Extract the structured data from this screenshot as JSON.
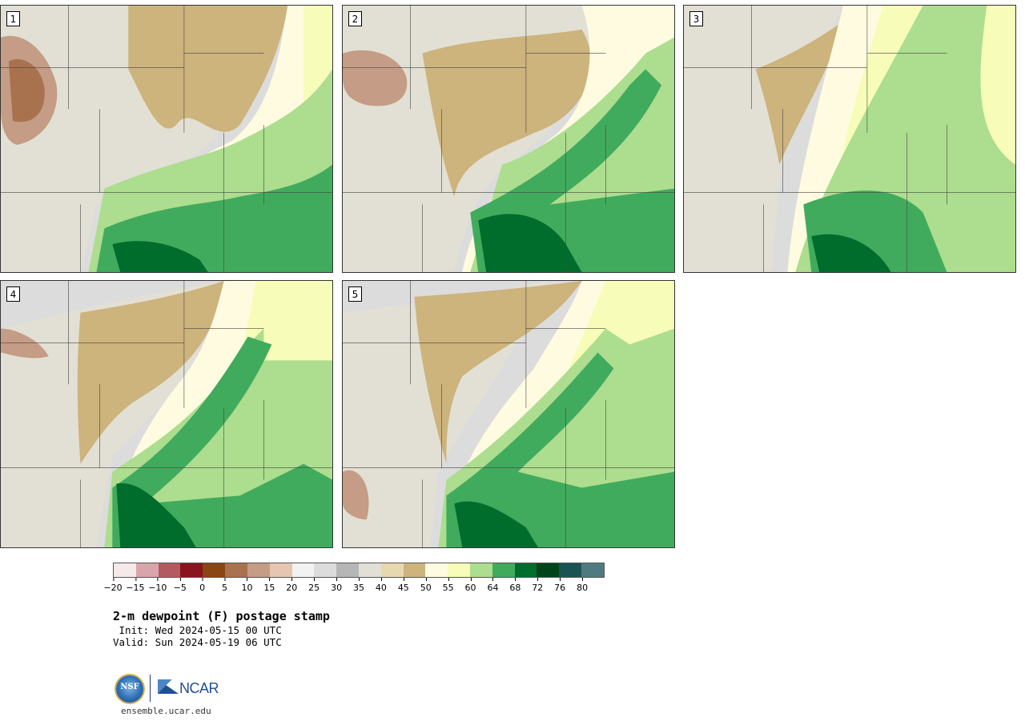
{
  "title": "2-m dewpoint (F) postage stamp",
  "init": " Init: Wed 2024-05-15 00 UTC",
  "valid": "Valid: Sun 2024-05-19 06 UTC",
  "site": "ensemble.ucar.edu",
  "logos": {
    "nsf": "NSF",
    "ncar": "NCAR"
  },
  "panels": [
    {
      "label": "1"
    },
    {
      "label": "2"
    },
    {
      "label": "3"
    },
    {
      "label": "4"
    },
    {
      "label": "5"
    }
  ],
  "colorbar": {
    "colors": [
      "#f5e9ea",
      "#d8a6aa",
      "#b35a60",
      "#8a1420",
      "#8b4513",
      "#a9724e",
      "#c59c85",
      "#e6c6b3",
      "#f2f2f2",
      "#dcdcdc",
      "#b6b6b6",
      "#e2e0d4",
      "#e8d8b0",
      "#cdb37c",
      "#fffbe0",
      "#f7fcb9",
      "#addd8e",
      "#41ab5d",
      "#006d2c",
      "#00441b",
      "#1b5354",
      "#4f7b80"
    ],
    "ticks": [
      "−20",
      "−15",
      "−10",
      "−5",
      "0",
      "5",
      "10",
      "15",
      "20",
      "25",
      "30",
      "35",
      "40",
      "45",
      "50",
      "55",
      "60",
      "64",
      "68",
      "72",
      "76",
      "80"
    ]
  }
}
